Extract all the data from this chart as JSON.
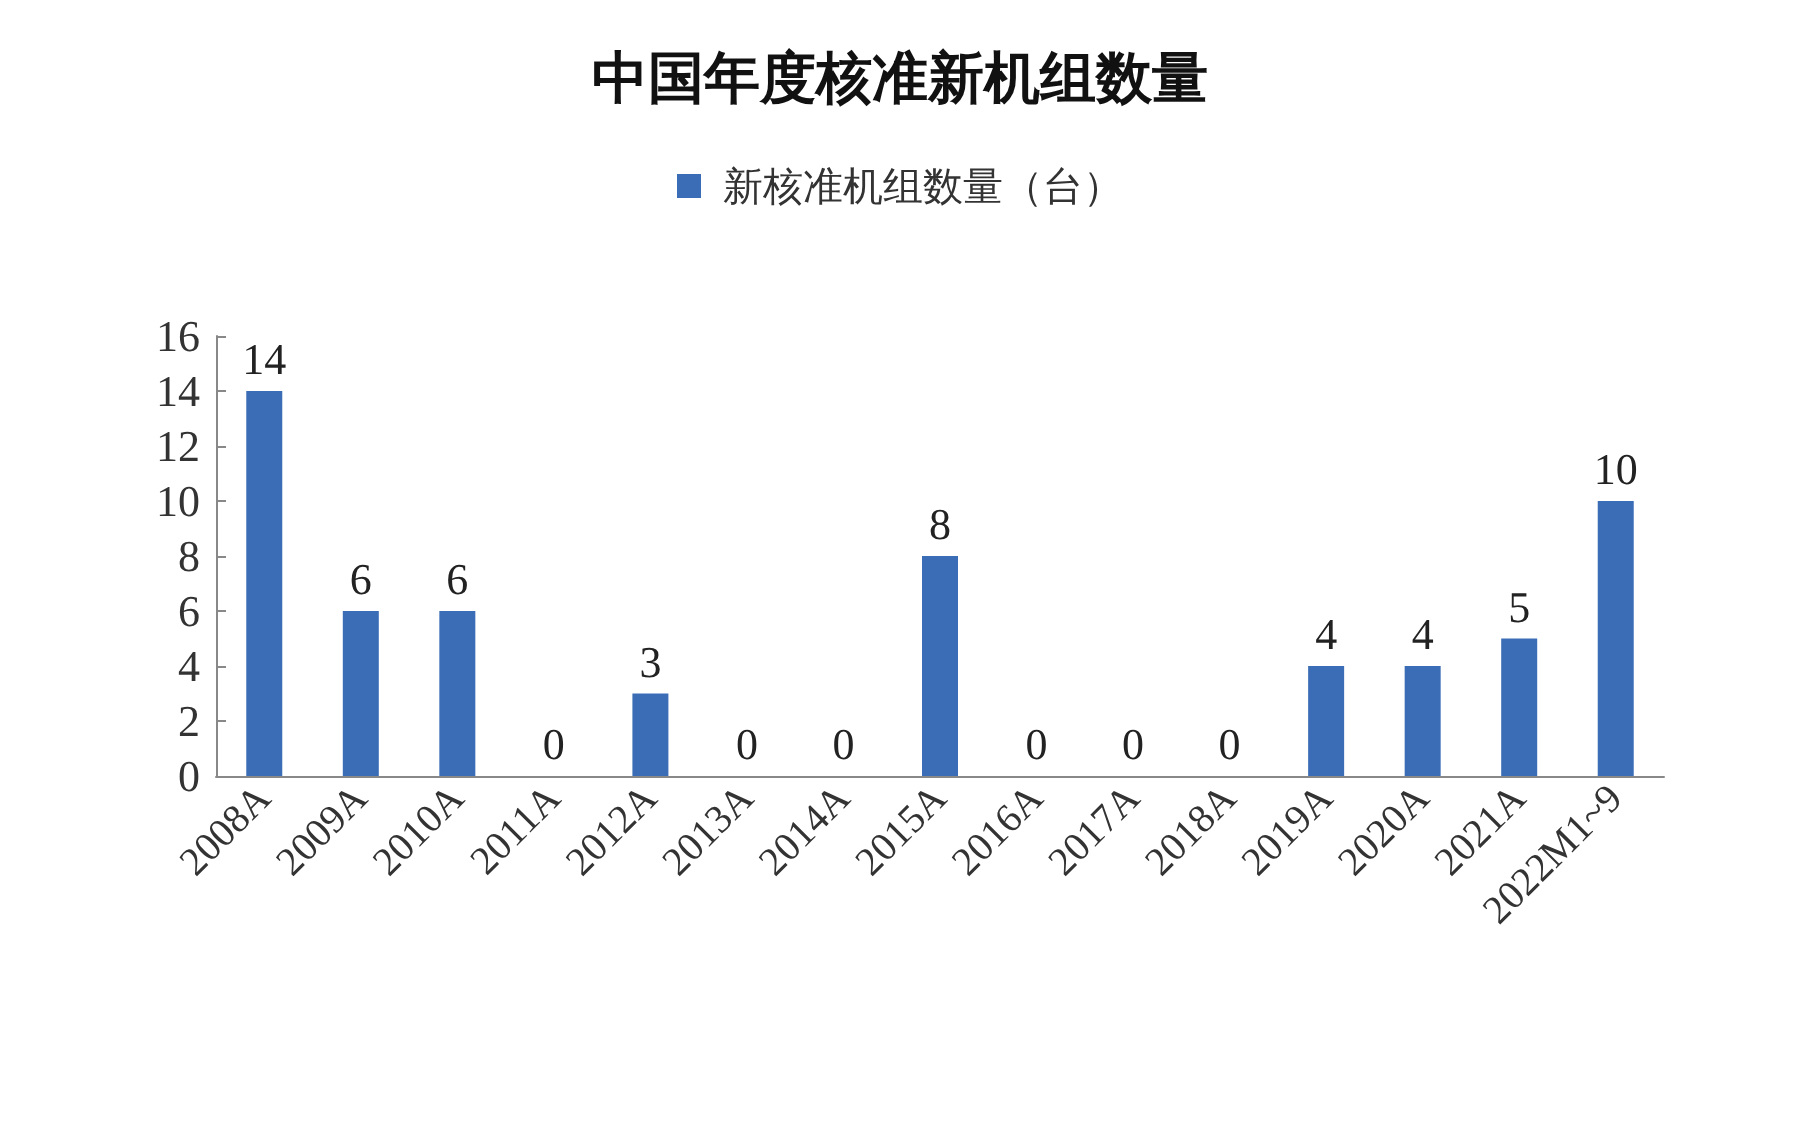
{
  "chart_data": {
    "type": "bar",
    "title": "中国年度核准新机组数量",
    "categories": [
      "2008A",
      "2009A",
      "2010A",
      "2011A",
      "2012A",
      "2013A",
      "2014A",
      "2015A",
      "2016A",
      "2017A",
      "2018A",
      "2019A",
      "2020A",
      "2021A",
      "2022M1~9"
    ],
    "series": [
      {
        "name": "新核准机组数量（台）",
        "color": "#3a6db5",
        "values": [
          14,
          6,
          6,
          0,
          3,
          0,
          0,
          8,
          0,
          0,
          0,
          4,
          4,
          5,
          10
        ]
      }
    ],
    "ylim": [
      0,
      16
    ],
    "yticks": [
      0,
      2,
      4,
      6,
      8,
      10,
      12,
      14,
      16
    ],
    "grid": false,
    "legend": "top",
    "data_labels": true
  }
}
